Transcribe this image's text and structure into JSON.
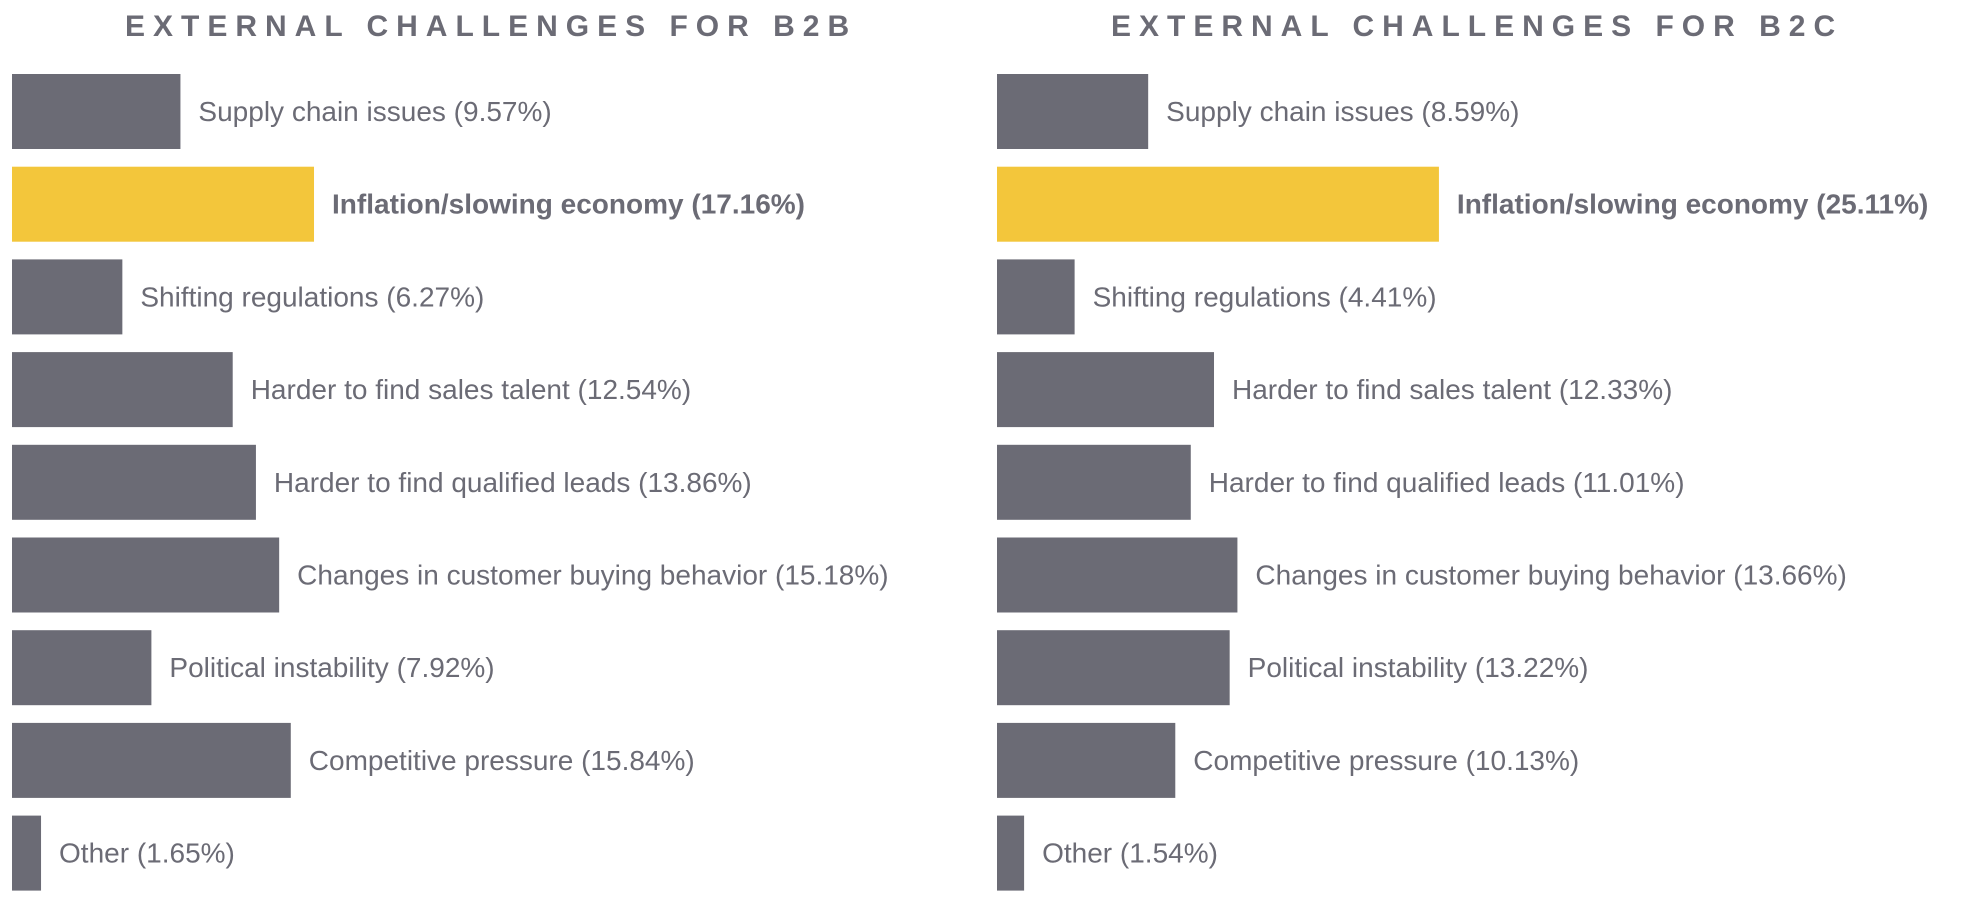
{
  "colors": {
    "bar": "#6b6b75",
    "highlight": "#f3c63b",
    "text": "#6b6b75"
  },
  "chart_data": [
    {
      "type": "bar",
      "orientation": "horizontal",
      "title": "EXTERNAL CHALLENGES FOR B2B",
      "unit": "%",
      "highlight_index": 1,
      "categories": [
        "Supply chain issues",
        "Inflation/slowing economy",
        "Shifting regulations",
        "Harder to find sales talent",
        "Harder to find qualified leads",
        "Changes in customer buying behavior",
        "Political instability",
        "Competitive pressure",
        "Other"
      ],
      "values": [
        9.57,
        17.16,
        6.27,
        12.54,
        13.86,
        15.18,
        7.92,
        15.84,
        1.65
      ],
      "labels": [
        "Supply chain issues (9.57%)",
        "Inflation/slowing economy (17.16%)",
        "Shifting regulations (6.27%)",
        "Harder to find sales talent (12.54%)",
        "Harder to find qualified leads (13.86%)",
        "Changes in customer buying behavior (15.18%)",
        "Political instability (7.92%)",
        "Competitive pressure (15.84%)",
        "Other (1.65%)"
      ]
    },
    {
      "type": "bar",
      "orientation": "horizontal",
      "title": "EXTERNAL CHALLENGES FOR B2C",
      "unit": "%",
      "highlight_index": 1,
      "categories": [
        "Supply chain issues",
        "Inflation/slowing economy",
        "Shifting regulations",
        "Harder to find sales talent",
        "Harder to find qualified leads",
        "Changes in customer buying behavior",
        "Political instability",
        "Competitive pressure",
        "Other"
      ],
      "values": [
        8.59,
        25.11,
        4.41,
        12.33,
        11.01,
        13.66,
        13.22,
        10.13,
        1.54
      ],
      "labels": [
        "Supply chain issues (8.59%)",
        "Inflation/slowing economy (25.11%)",
        "Shifting regulations (4.41%)",
        "Harder to find sales talent (12.33%)",
        "Harder to find qualified leads (11.01%)",
        "Changes in customer buying behavior (13.66%)",
        "Political instability (13.22%)",
        "Competitive pressure (10.13%)",
        "Other (1.54%)"
      ]
    }
  ]
}
